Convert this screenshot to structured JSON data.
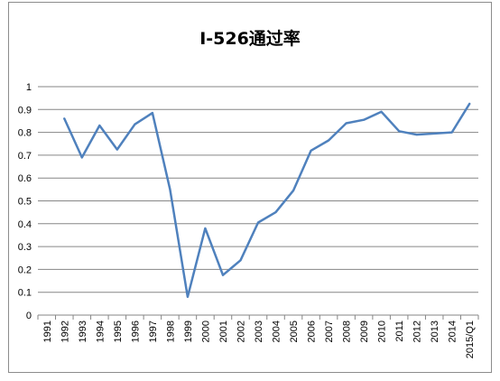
{
  "chart_data": {
    "type": "line",
    "title": "I-526通过率",
    "xlabel": "",
    "ylabel": "",
    "ylim": [
      0,
      1
    ],
    "yticks": [
      "0",
      "0.1",
      "0.2",
      "0.3",
      "0.4",
      "0.5",
      "0.6",
      "0.7",
      "0.8",
      "0.9",
      "1"
    ],
    "grid": "horizontal",
    "legend": "none",
    "categories": [
      "1991",
      "1992",
      "1993",
      "1994",
      "1995",
      "1996",
      "1997",
      "1998",
      "1999",
      "2000",
      "2001",
      "2002",
      "2003",
      "2004",
      "2005",
      "2006",
      "2007",
      "2008",
      "2009",
      "2010",
      "2011",
      "2012",
      "2013",
      "2014",
      "2015/Q1"
    ],
    "series": [
      {
        "values": [
          null,
          0.86,
          0.69,
          0.83,
          0.725,
          0.835,
          0.885,
          0.55,
          0.08,
          0.38,
          0.175,
          0.24,
          0.405,
          0.45,
          0.545,
          0.72,
          0.765,
          0.84,
          0.855,
          0.89,
          0.805,
          0.79,
          0.795,
          0.8,
          0.925
        ]
      }
    ],
    "colors": {
      "line": "#4f81bd",
      "grid": "#868686",
      "axis": "#868686",
      "frame": "#8c8c8c"
    }
  }
}
